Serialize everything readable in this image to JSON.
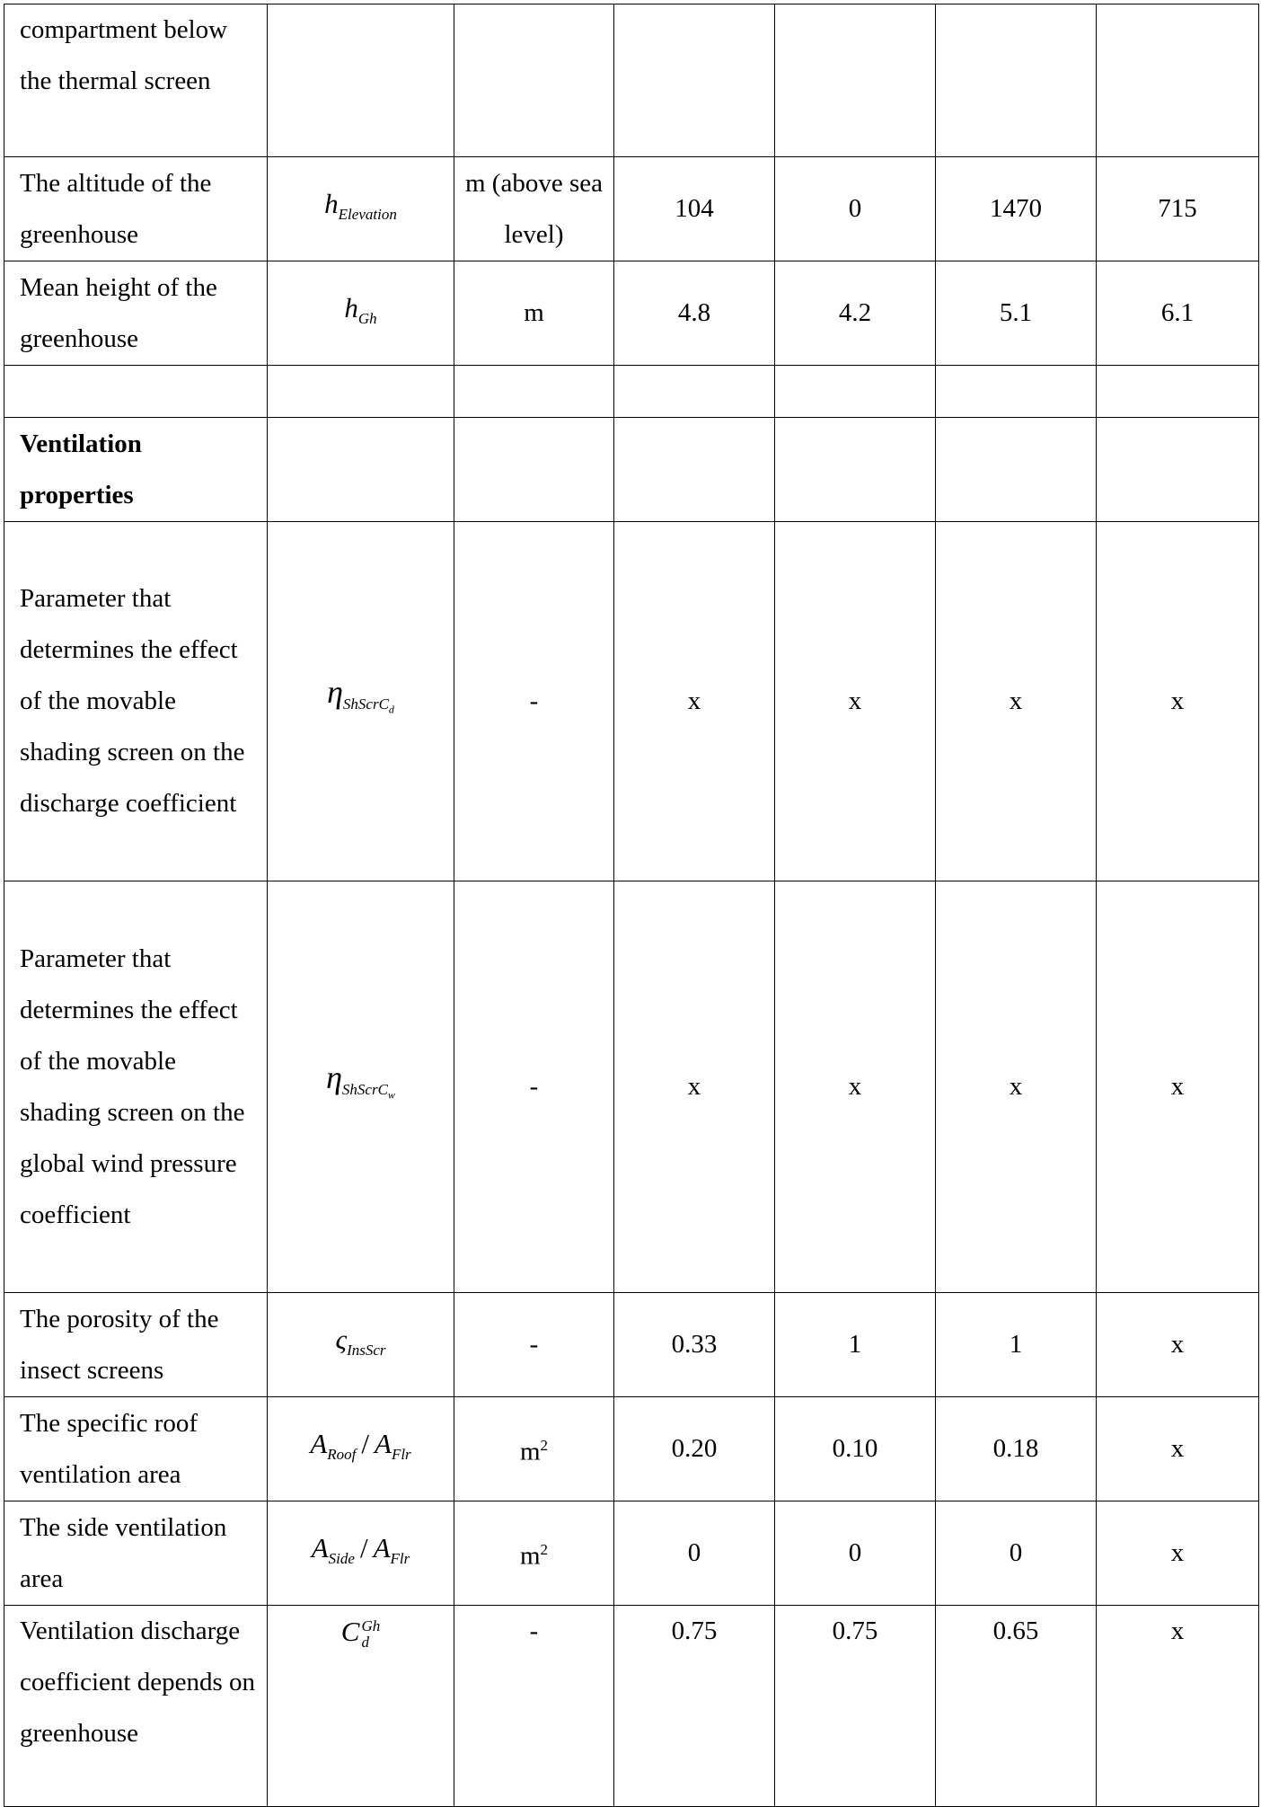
{
  "rows": [
    {
      "desc": "compartment below the thermal screen",
      "cells": [
        "",
        "",
        "",
        "",
        "",
        ""
      ]
    },
    {
      "desc": "The altitude of the greenhouse",
      "sym_main": "h",
      "sym_sub": "Elevation",
      "unit": "m (above sea level)",
      "values": [
        "104",
        "0",
        "1470",
        "715"
      ]
    },
    {
      "desc": "Mean height of the greenhouse",
      "sym_main": "h",
      "sym_sub": "Gh",
      "unit": "m",
      "values": [
        "4.8",
        "4.2",
        "5.1",
        "6.1"
      ]
    },
    {
      "desc": ""
    },
    {
      "desc": "Ventilation properties",
      "section": true
    },
    {
      "desc": "Parameter that determines the effect of the movable shading screen on the discharge coefficient",
      "sym_main": "η",
      "sym_sub": "ShScrC",
      "sym_subsub": "d",
      "unit": "-",
      "values": [
        "x",
        "x",
        "x",
        "x"
      ]
    },
    {
      "desc": "Parameter that determines the effect of the movable shading screen on the global wind pressure coefficient",
      "sym_main": "η",
      "sym_sub": "ShScrC",
      "sym_subsub": "w",
      "unit": "-",
      "values": [
        "x",
        "x",
        "x",
        "x"
      ]
    },
    {
      "desc": "The porosity of the insect screens",
      "sym_main": "ς",
      "sym_sub": "InsScr",
      "unit": "-",
      "values": [
        "0.33",
        "1",
        "1",
        "x"
      ]
    },
    {
      "desc": "The specific roof ventilation area",
      "sym_num": "A",
      "sym_num_sub": "Roof",
      "sym_den": "A",
      "sym_den_sub": "Flr",
      "unit_base": "m",
      "unit_sup": "2",
      "values": [
        "0.20",
        "0.10",
        "0.18",
        "x"
      ]
    },
    {
      "desc": "The side ventilation area",
      "sym_num": "A",
      "sym_num_sub": "Side",
      "sym_den": "A",
      "sym_den_sub": "Flr",
      "unit_base": "m",
      "unit_sup": "2",
      "values": [
        "0",
        "0",
        "0",
        "x"
      ]
    },
    {
      "desc": "Ventilation discharge coefficient depends on greenhouse",
      "sym_main": "C",
      "sym_sup": "Gh",
      "sym_sub": "d",
      "unit": "-",
      "values": [
        "0.75",
        "0.75",
        "0.65",
        "x"
      ]
    }
  ]
}
